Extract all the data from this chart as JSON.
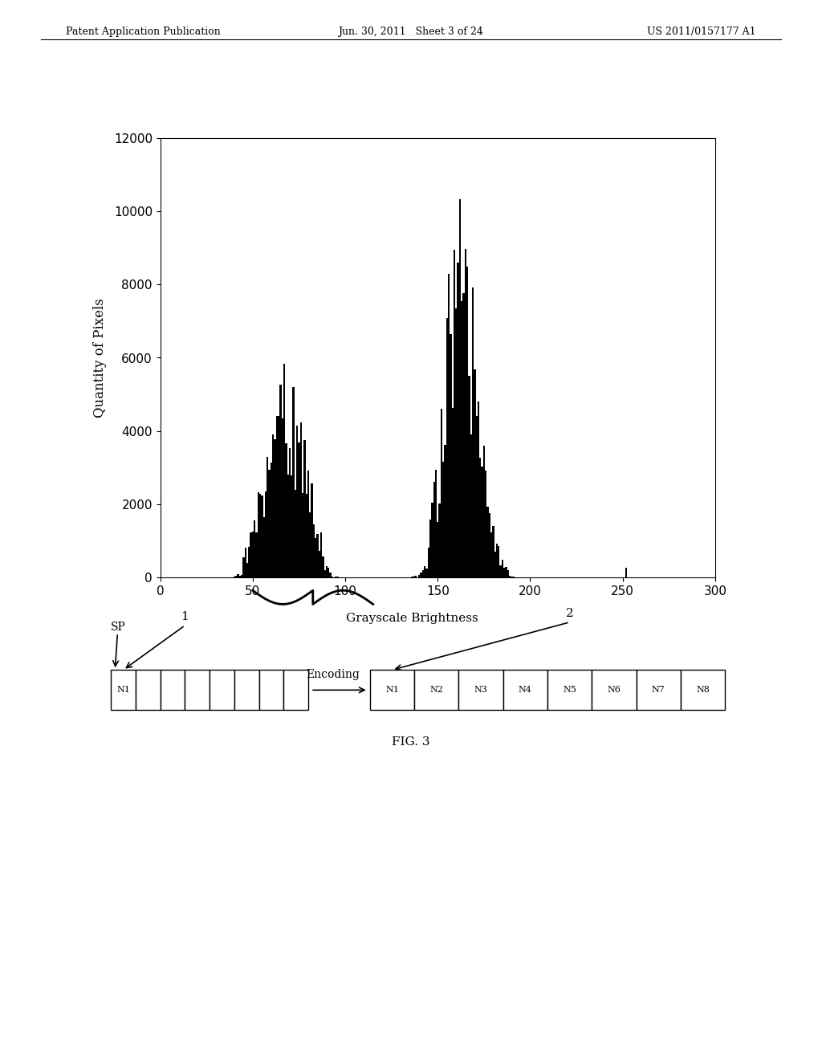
{
  "background_color": "#ffffff",
  "header_left": "Patent Application Publication",
  "header_center": "Jun. 30, 2011   Sheet 3 of 24",
  "header_right": "US 2011/0157177 A1",
  "ylabel": "Quantity of Pixels",
  "xlabel": "Grayscale Brightness",
  "yticks": [
    0,
    2000,
    4000,
    6000,
    8000,
    10000,
    12000
  ],
  "xticks": [
    0,
    50,
    100,
    150,
    200,
    250,
    300
  ],
  "xlim": [
    0,
    300
  ],
  "ylim": [
    0,
    12000
  ],
  "fig_caption": "FIG. 3",
  "box2_labels": [
    "N1",
    "N2",
    "N3",
    "N4",
    "N5",
    "N6",
    "N7",
    "N8"
  ],
  "encoding_label": "Encoding",
  "sp_label": "SP",
  "label1": "1",
  "label2": "2"
}
